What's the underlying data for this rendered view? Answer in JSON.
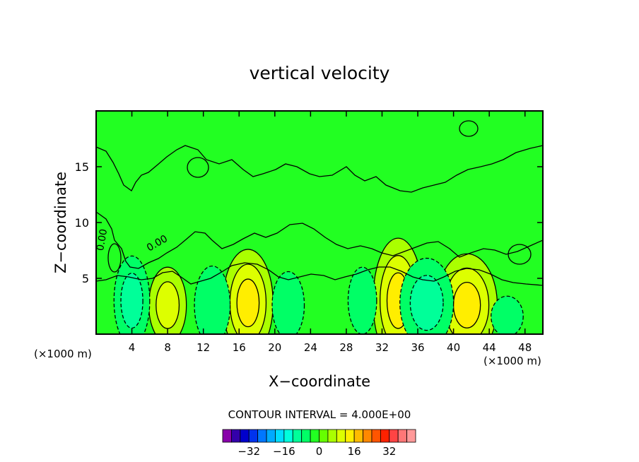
{
  "chart_data": {
    "type": "heatmap",
    "title": "vertical velocity",
    "xlabel": "X−coordinate",
    "ylabel": "Z−coordinate",
    "x_unit_left": "(×1000 m)",
    "x_unit_right": "(×1000 m)",
    "xlim": [
      0,
      50
    ],
    "ylim": [
      0,
      20
    ],
    "xticks": [
      4,
      8,
      12,
      16,
      20,
      24,
      28,
      32,
      36,
      40,
      44,
      48
    ],
    "yticks": [
      5,
      10,
      15
    ],
    "contour_interval_text": "CONTOUR INTERVAL = 4.000E+00",
    "contour_labels": [
      {
        "text": "0.00",
        "x": 1.0,
        "z": 8.4,
        "angle": -80
      },
      {
        "text": "0.00",
        "x": 7.0,
        "z": 7.9,
        "angle": -30
      }
    ],
    "features": [
      {
        "x": 8.0,
        "z": 2.6,
        "w": 2.1,
        "h": 3.4,
        "value": 8
      },
      {
        "x": 17.0,
        "z": 2.8,
        "w": 2.8,
        "h": 4.8,
        "value": 12
      },
      {
        "x": 33.8,
        "z": 3.0,
        "w": 2.8,
        "h": 5.6,
        "value": 12
      },
      {
        "x": 41.5,
        "z": 2.6,
        "w": 3.4,
        "h": 4.6,
        "value": 12
      },
      {
        "x": 4.0,
        "z": 3.0,
        "w": 2.0,
        "h": 4.0,
        "value": -8
      },
      {
        "x": 13.0,
        "z": 2.6,
        "w": 2.0,
        "h": 3.5,
        "value": -4
      },
      {
        "x": 21.5,
        "z": 2.6,
        "w": 1.8,
        "h": 3.0,
        "value": -4
      },
      {
        "x": 29.8,
        "z": 3.0,
        "w": 1.6,
        "h": 3.0,
        "value": -4
      },
      {
        "x": 37.0,
        "z": 2.8,
        "w": 3.0,
        "h": 4.0,
        "value": -8
      },
      {
        "x": 46.0,
        "z": 1.6,
        "w": 1.8,
        "h": 1.8,
        "value": -4
      }
    ],
    "colorbar": {
      "colors": [
        "#8800aa",
        "#3300aa",
        "#0000cc",
        "#0033ee",
        "#0077ff",
        "#00aaff",
        "#00ddff",
        "#00ffdd",
        "#00ff99",
        "#00ff66",
        "#22ff22",
        "#66ff00",
        "#aaff00",
        "#ddff00",
        "#ffee00",
        "#ffbb00",
        "#ff8800",
        "#ff5500",
        "#ff2200",
        "#ff4444",
        "#ff7777",
        "#ff9999"
      ],
      "min": -44,
      "step": 4,
      "tick_labels": [
        {
          "text": "−32",
          "value": -32
        },
        {
          "text": "−16",
          "value": -16
        },
        {
          "text": "0",
          "value": 0
        },
        {
          "text": "16",
          "value": 16
        },
        {
          "text": "32",
          "value": 32
        }
      ]
    },
    "background_color": "#22ff22",
    "contour_color": "#000000",
    "grid": false,
    "legend": "colorbar-bottom"
  }
}
